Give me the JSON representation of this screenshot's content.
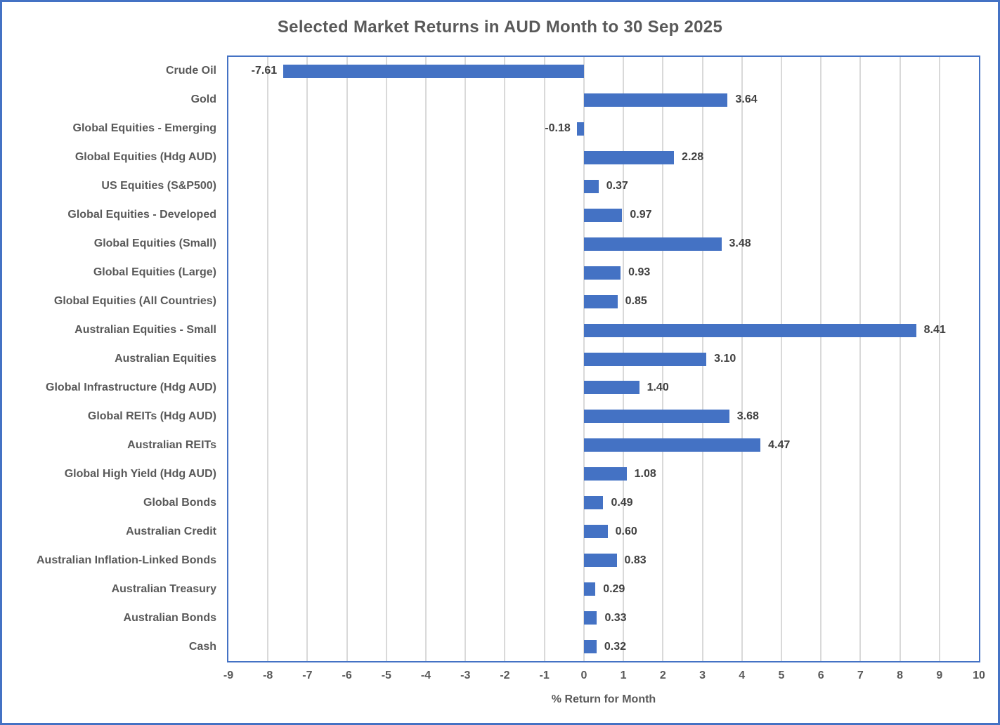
{
  "window": {
    "background": "#FFFFFF",
    "frame_border_color": "#4472C4"
  },
  "chart_data": {
    "type": "bar",
    "orientation": "horizontal",
    "title": "Selected Market Returns in AUD Month to 30 Sep 2025",
    "xlabel": "% Return for Month",
    "xlim": [
      -9,
      10
    ],
    "xticks": [
      -9,
      -8,
      -7,
      -6,
      -5,
      -4,
      -3,
      -2,
      -1,
      0,
      1,
      2,
      3,
      4,
      5,
      6,
      7,
      8,
      9,
      10
    ],
    "grid": true,
    "legend": false,
    "bar_color": "#4472C4",
    "gridline_color": "#D9D9D9",
    "plot_border_color": "#4472C4",
    "title_color": "#595959",
    "axis_text_color": "#595959",
    "value_label_color": "#404040",
    "categories": [
      "Crude Oil",
      "Gold",
      "Global Equities - Emerging",
      "Global Equities (Hdg AUD)",
      "US Equities (S&P500)",
      "Global Equities - Developed",
      "Global Equities (Small)",
      "Global Equities (Large)",
      "Global Equities (All Countries)",
      "Australian Equities - Small",
      "Australian Equities",
      "Global Infrastructure (Hdg AUD)",
      "Global REITs (Hdg AUD)",
      "Australian REITs",
      "Global High Yield (Hdg AUD)",
      "Global Bonds",
      "Australian Credit",
      "Australian Inflation-Linked Bonds",
      "Australian Treasury",
      "Australian Bonds",
      "Cash"
    ],
    "values": [
      -7.61,
      3.64,
      -0.18,
      2.28,
      0.37,
      0.97,
      3.48,
      0.93,
      0.85,
      8.41,
      3.1,
      1.4,
      3.68,
      4.47,
      1.08,
      0.49,
      0.6,
      0.83,
      0.29,
      0.33,
      0.32
    ]
  }
}
